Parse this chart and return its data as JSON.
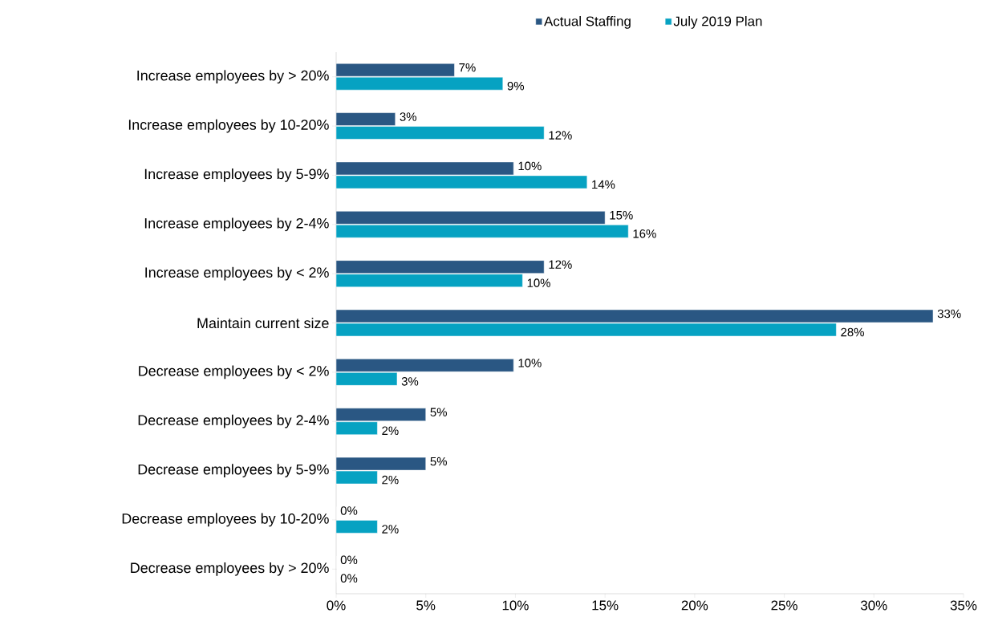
{
  "chart_data": {
    "type": "bar",
    "orientation": "horizontal",
    "legend": "top",
    "grid": false,
    "categories": [
      "Increase employees by > 20%",
      "Increase employees by 10-20%",
      "Increase employees by 5-9%",
      "Increase employees by 2-4%",
      "Increase employees by < 2%",
      "Maintain current size",
      "Decrease employees by < 2%",
      "Decrease employees by 2-4%",
      "Decrease employees by 5-9%",
      "Decrease employees by 10-20%",
      "Decrease employees by > 20%"
    ],
    "series": [
      {
        "name": "Actual Staffing",
        "color": "#2a5783",
        "values": [
          6.6,
          3.3,
          9.9,
          15.0,
          11.6,
          33.3,
          9.9,
          5.0,
          5.0,
          0,
          0
        ],
        "value_labels": [
          "7%",
          "3%",
          "10%",
          "15%",
          "12%",
          "33%",
          "10%",
          "5%",
          "5%",
          "0%",
          "0%"
        ]
      },
      {
        "name": "July 2019 Plan",
        "color": "#06a2c2",
        "values": [
          9.3,
          11.6,
          14.0,
          16.3,
          10.4,
          27.9,
          3.4,
          2.3,
          2.3,
          2.3,
          0
        ],
        "value_labels": [
          "9%",
          "12%",
          "14%",
          "16%",
          "10%",
          "28%",
          "3%",
          "2%",
          "2%",
          "2%",
          "0%"
        ]
      }
    ],
    "xlim": [
      0,
      35
    ],
    "xticks": [
      {
        "value": 0,
        "label": "0%"
      },
      {
        "value": 5,
        "label": "5%"
      },
      {
        "value": 10,
        "label": "10%"
      },
      {
        "value": 15,
        "label": "15%"
      },
      {
        "value": 20,
        "label": "20%"
      },
      {
        "value": 25,
        "label": "25%"
      },
      {
        "value": 30,
        "label": "30%"
      },
      {
        "value": 35,
        "label": "35%"
      }
    ]
  }
}
